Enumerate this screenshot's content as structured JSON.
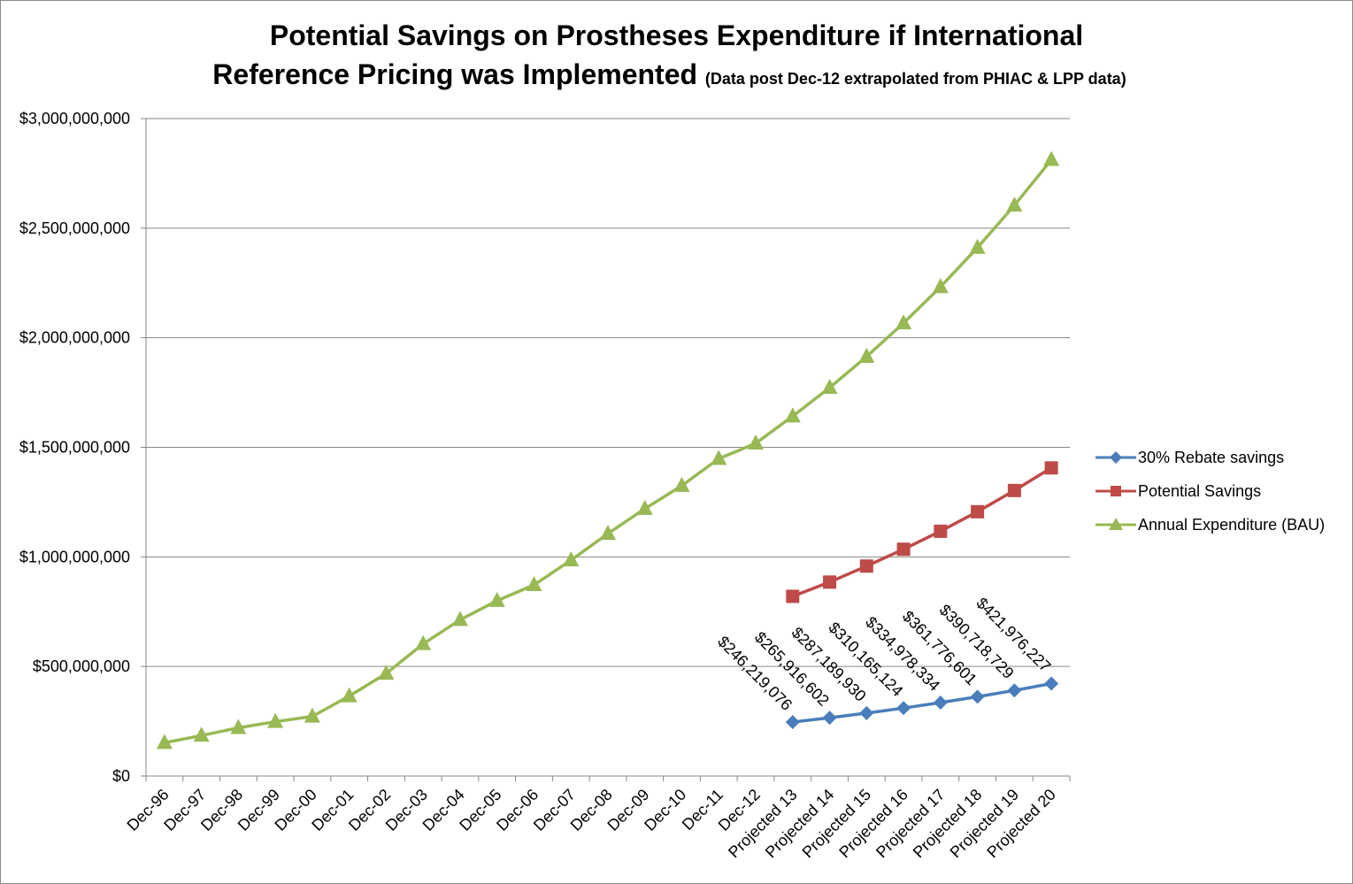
{
  "chart_data": {
    "type": "line",
    "title": "Potential Savings on Prostheses Expenditure if International",
    "title_line2": "Reference Pricing was Implemented",
    "subtitle": "(Data post Dec-12 extrapolated from PHIAC & LPP data)",
    "xlabel": "",
    "ylabel": "",
    "ylim": [
      0,
      3000000000
    ],
    "yticks": [
      0,
      500000000,
      1000000000,
      1500000000,
      2000000000,
      2500000000,
      3000000000
    ],
    "ytick_labels": [
      "$0",
      "$500,000,000",
      "$1,000,000,000",
      "$1,500,000,000",
      "$2,000,000,000",
      "$2,500,000,000",
      "$3,000,000,000"
    ],
    "grid": true,
    "legend_position": "right",
    "categories": [
      "Dec-96",
      "Dec-97",
      "Dec-98",
      "Dec-99",
      "Dec-00",
      "Dec-01",
      "Dec-02",
      "Dec-03",
      "Dec-04",
      "Dec-05",
      "Dec-06",
      "Dec-07",
      "Dec-08",
      "Dec-09",
      "Dec-10",
      "Dec-11",
      "Dec-12",
      "Projected 13",
      "Projected 14",
      "Projected 15",
      "Projected 16",
      "Projected 17",
      "Projected 18",
      "Projected 19",
      "Projected 20"
    ],
    "series": [
      {
        "name": "30% Rebate savings",
        "color": "#4a7ebb",
        "marker": "diamond",
        "values": [
          null,
          null,
          null,
          null,
          null,
          null,
          null,
          null,
          null,
          null,
          null,
          null,
          null,
          null,
          null,
          null,
          null,
          246219076,
          265916602,
          287189930,
          310165124,
          334978334,
          361776601,
          390718729,
          421976227
        ],
        "data_labels": [
          null,
          null,
          null,
          null,
          null,
          null,
          null,
          null,
          null,
          null,
          null,
          null,
          null,
          null,
          null,
          null,
          null,
          "$246,219,076",
          "$265,916,602",
          "$287,189,930",
          "$310,165,124",
          "$334,978,334",
          "$361,776,601",
          "$390,718,729",
          "$421,976,227"
        ]
      },
      {
        "name": "Potential Savings",
        "color": "#be4b48",
        "marker": "square",
        "values": [
          null,
          null,
          null,
          null,
          null,
          null,
          null,
          null,
          null,
          null,
          null,
          null,
          null,
          null,
          null,
          null,
          null,
          820000000,
          885000000,
          958000000,
          1035000000,
          1117000000,
          1206000000,
          1303000000,
          1406000000
        ]
      },
      {
        "name": "Annual Expenditure (BAU)",
        "color": "#98b954",
        "marker": "triangle",
        "values": [
          152000000,
          185000000,
          220000000,
          248000000,
          272000000,
          365000000,
          468000000,
          603000000,
          713000000,
          800000000,
          872000000,
          985000000,
          1106000000,
          1220000000,
          1325000000,
          1448000000,
          1518000000,
          1642000000,
          1772000000,
          1914000000,
          2067000000,
          2232000000,
          2411000000,
          2604000000,
          2812000000
        ]
      }
    ]
  }
}
